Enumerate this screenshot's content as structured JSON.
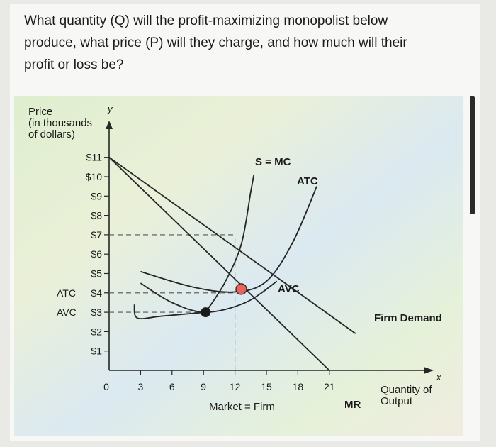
{
  "question": {
    "lines": [
      "What quantity (Q) will the profit-maximizing monopolist below",
      "produce, what price (P) will they charge, and how much will their",
      "profit or loss be?"
    ]
  },
  "colors": {
    "point_equilibrium": "#e8645a",
    "point_shutdown": "#1a1a1a",
    "curve": "#262626"
  },
  "chart_data": {
    "type": "line",
    "ylabel_lines": [
      "Price",
      "(in thousands",
      "of dollars)"
    ],
    "y_axis_letter": "y",
    "x_axis_letter": "x",
    "xlabel_lines": [
      "Quantity of",
      "Output"
    ],
    "x_caption": "Market = Firm",
    "ylim": [
      0,
      11
    ],
    "xlim": [
      0,
      24
    ],
    "y_ticks": [
      {
        "value": 11,
        "label": "$11"
      },
      {
        "value": 10,
        "label": "$10"
      },
      {
        "value": 9,
        "label": "$9"
      },
      {
        "value": 8,
        "label": "$8"
      },
      {
        "value": 7,
        "label": "$7"
      },
      {
        "value": 6,
        "label": "$6"
      },
      {
        "value": 5,
        "label": "$5"
      },
      {
        "value": 4,
        "label": "$4",
        "prefix": "ATC"
      },
      {
        "value": 3,
        "label": "$3",
        "prefix": "AVC"
      },
      {
        "value": 2,
        "label": "$2"
      },
      {
        "value": 1,
        "label": "$1"
      }
    ],
    "x_ticks": [
      {
        "value": 0,
        "label": "0"
      },
      {
        "value": 3,
        "label": "3"
      },
      {
        "value": 6,
        "label": "6"
      },
      {
        "value": 9,
        "label": "9"
      },
      {
        "value": 12,
        "label": "12"
      },
      {
        "value": 15,
        "label": "15"
      },
      {
        "value": 18,
        "label": "18"
      },
      {
        "value": 21,
        "label": "21"
      }
    ],
    "series": [
      {
        "name": "Firm Demand",
        "points": [
          [
            0,
            11
          ],
          [
            23.5,
            1.9
          ]
        ]
      },
      {
        "name": "MR",
        "points": [
          [
            0,
            11
          ],
          [
            21,
            0
          ]
        ]
      },
      {
        "name": "S = MC",
        "points": [
          [
            9.2,
            3.0
          ],
          [
            11,
            4.5
          ],
          [
            12.6,
            6.5
          ],
          [
            13.5,
            9.2
          ],
          [
            13.8,
            10.1
          ]
        ]
      },
      {
        "name": "ATC",
        "points": [
          [
            3,
            5.1
          ],
          [
            8,
            4.3
          ],
          [
            12,
            4.05
          ],
          [
            15,
            4.6
          ],
          [
            17.5,
            6.6
          ],
          [
            19.8,
            9.5
          ]
        ]
      },
      {
        "name": "AVC",
        "points": [
          [
            3,
            4.5
          ],
          [
            6,
            3.5
          ],
          [
            9.2,
            3.0
          ],
          [
            13,
            3.5
          ],
          [
            16,
            4.6
          ]
        ]
      },
      {
        "name": "",
        "points": [
          [
            2.4,
            3.4
          ],
          [
            2.7,
            2.7
          ],
          [
            5,
            2.8
          ],
          [
            9.2,
            3.0
          ]
        ]
      }
    ],
    "reference_lines": [
      {
        "axis": "y",
        "value": 7,
        "to_x": 12
      },
      {
        "axis": "y",
        "value": 4,
        "to_x": 12
      },
      {
        "axis": "y",
        "value": 3,
        "to_x": 9.2
      },
      {
        "axis": "x",
        "value": 12,
        "to_y": 7
      }
    ],
    "points": [
      {
        "x": 12.6,
        "y": 4.2
      },
      {
        "x": 9.2,
        "y": 3.0
      }
    ]
  }
}
